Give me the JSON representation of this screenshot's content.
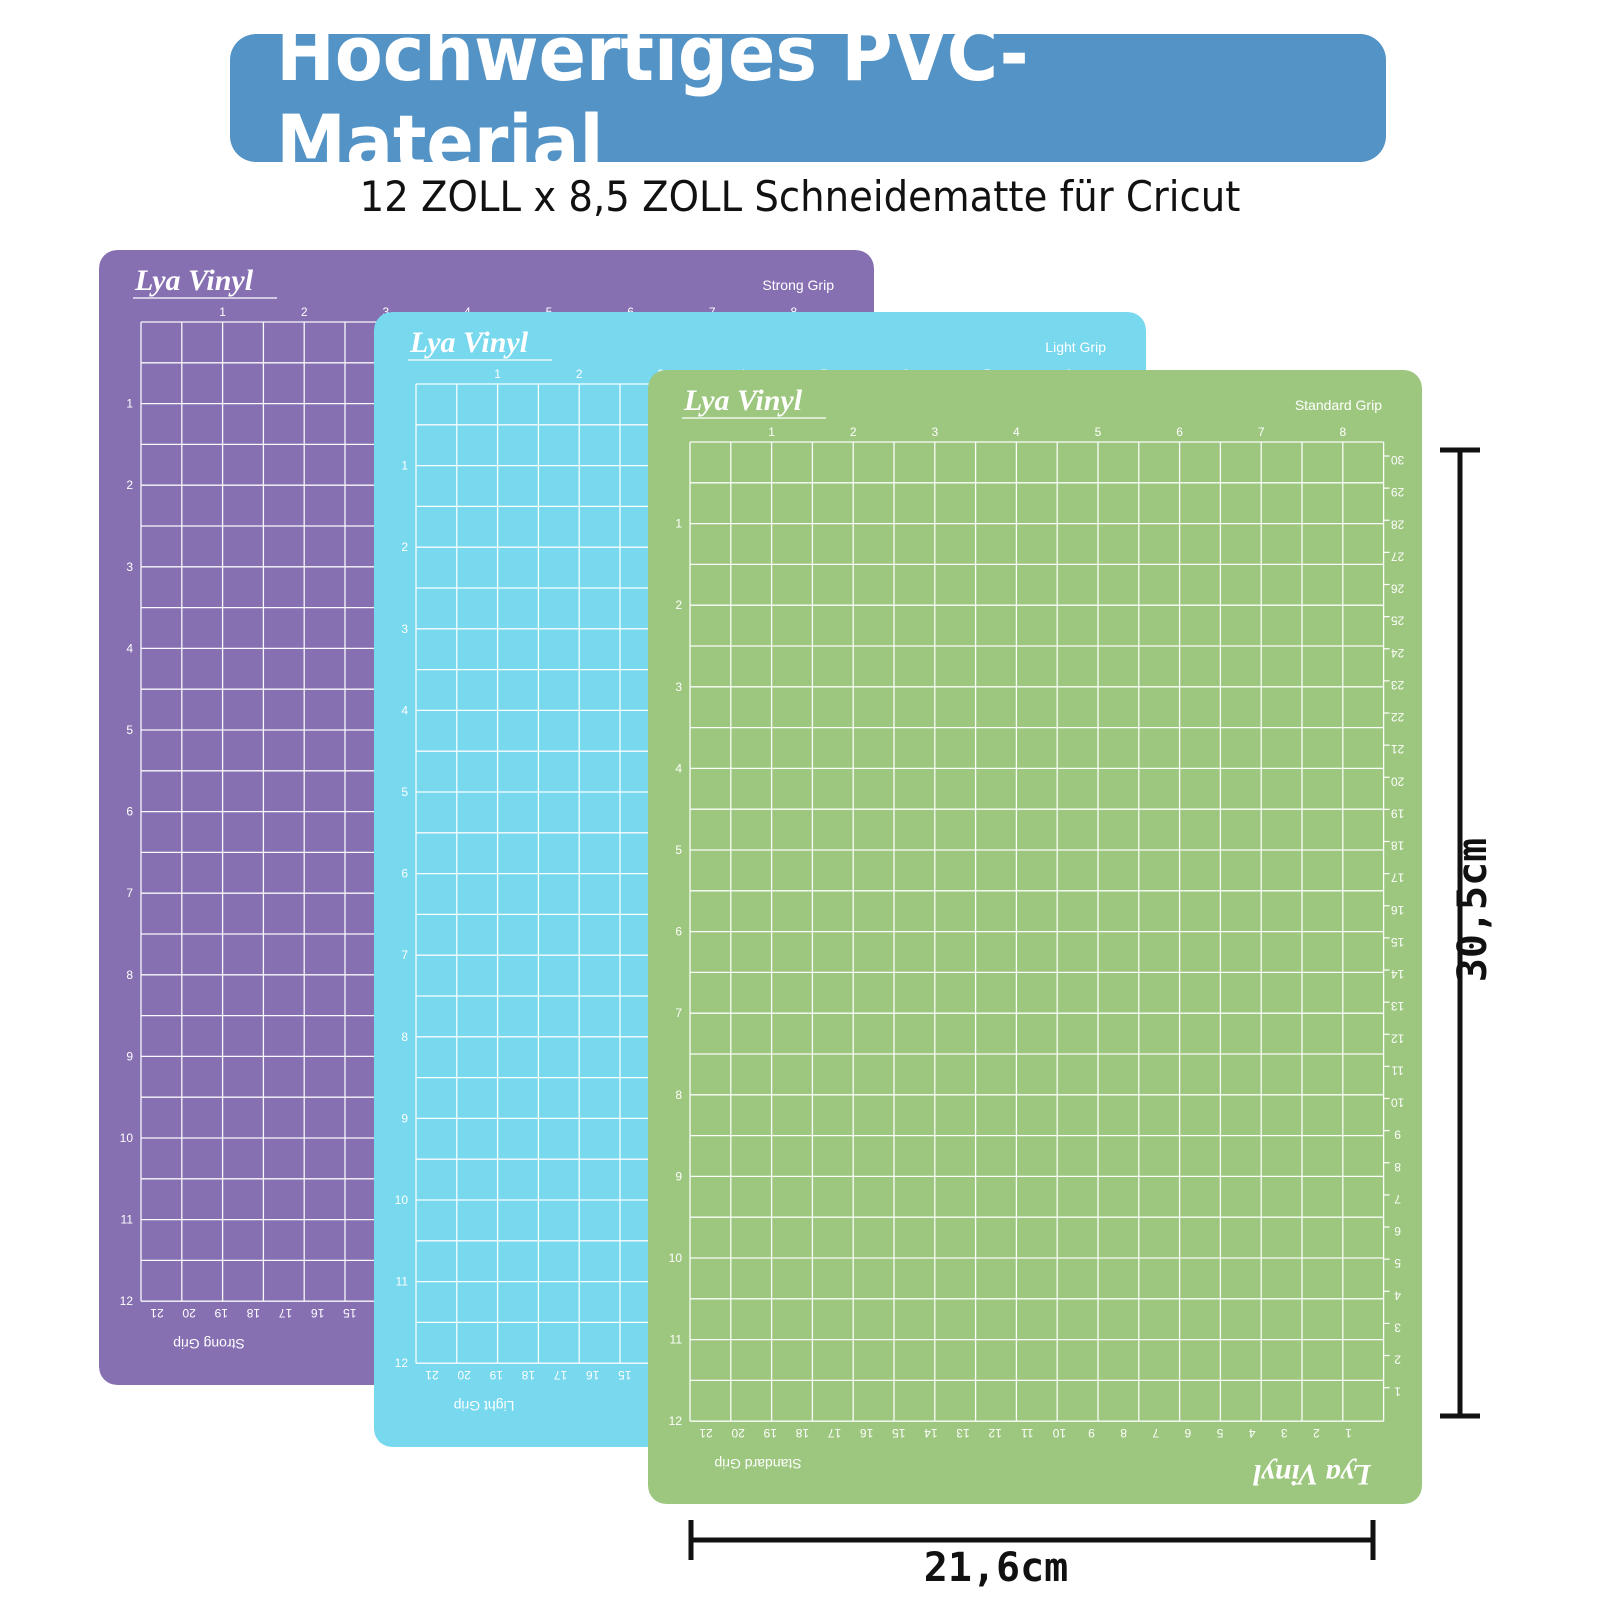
{
  "header": {
    "title": "Hochwertiges PVC-Material",
    "subtitle": "12 ZOLL x 8,5 ZOLL Schneidematte für Cricut"
  },
  "mats": [
    {
      "id": "strong",
      "brand": "Lya Vinyl",
      "grip_label": "Strong Grip",
      "color": "#8670b2"
    },
    {
      "id": "light",
      "brand": "Lya Vinyl",
      "grip_label": "Light Grip",
      "color": "#77d8ee"
    },
    {
      "id": "standard",
      "brand": "Lya Vinyl",
      "grip_label": "Standard Grip",
      "color": "#9dc77f"
    }
  ],
  "grid": {
    "columns_inches": 8.5,
    "rows_inches": 12,
    "top_ruler_labels": [
      "1",
      "2",
      "3",
      "4",
      "5",
      "6",
      "7",
      "8"
    ],
    "left_ruler_labels": [
      "1",
      "2",
      "3",
      "4",
      "5",
      "6",
      "7",
      "8",
      "9",
      "10",
      "11",
      "12"
    ],
    "right_ruler_labels_cm": [
      "30",
      "29",
      "28",
      "27",
      "26",
      "25",
      "24",
      "23",
      "22",
      "21",
      "20",
      "19",
      "18",
      "17",
      "16",
      "15",
      "14",
      "13",
      "12",
      "11",
      "10",
      "9",
      "8",
      "7",
      "6",
      "5",
      "4",
      "3",
      "2",
      "1"
    ],
    "bottom_ruler_labels_cm": [
      "21",
      "20",
      "19",
      "18",
      "17",
      "16",
      "15",
      "14",
      "13",
      "12",
      "11",
      "10",
      "9",
      "8",
      "7",
      "6",
      "5",
      "4",
      "3",
      "2",
      "1"
    ]
  },
  "dimensions": {
    "height_label": "30,5cm",
    "width_label": "21,6cm"
  }
}
